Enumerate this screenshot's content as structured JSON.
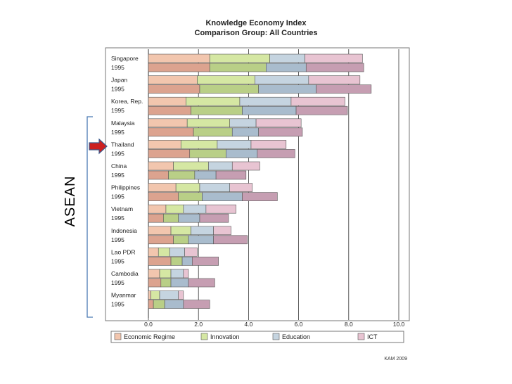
{
  "chart_data": {
    "type": "bar",
    "orientation": "horizontal",
    "stacked": true,
    "title": "Knowledge Economy Index",
    "subtitle": "Comparison Group: All Countries",
    "xlim": [
      0,
      10
    ],
    "xticks": [
      "0.0",
      "2.0",
      "4.0",
      "6.0",
      "8.0",
      "10.0"
    ],
    "grid": "vertical",
    "legend_position": "bottom",
    "series": [
      {
        "name": "Economic Regime",
        "color": "#f2c6ae"
      },
      {
        "name": "Innovation",
        "color": "#d5e7a3"
      },
      {
        "name": "Education",
        "color": "#c5d4e0"
      },
      {
        "name": "ICT",
        "color": "#e8c4d2"
      }
    ],
    "colors_1995": [
      "#dca38f",
      "#b9cf87",
      "#a9bccd",
      "#c69eb2"
    ],
    "countries": [
      {
        "name": "Singapore",
        "year_label": "1995",
        "current": [
          2.45,
          2.4,
          1.4,
          2.3
        ],
        "y1995": [
          2.45,
          2.25,
          1.6,
          2.3
        ]
      },
      {
        "name": "Japan",
        "year_label": "1995",
        "current": [
          1.95,
          2.3,
          2.15,
          2.05
        ],
        "y1995": [
          2.05,
          2.35,
          2.3,
          2.2
        ]
      },
      {
        "name": "Korea, Rep.",
        "year_label": "1995",
        "current": [
          1.5,
          2.15,
          2.05,
          2.15
        ],
        "y1995": [
          1.7,
          2.05,
          2.15,
          2.05
        ]
      },
      {
        "name": "Malaysia",
        "year_label": "1995",
        "current": [
          1.55,
          1.7,
          1.05,
          1.8
        ],
        "y1995": [
          1.8,
          1.55,
          1.05,
          1.75
        ]
      },
      {
        "name": "Thailand",
        "year_label": "1995",
        "current": [
          1.3,
          1.45,
          1.35,
          1.4
        ],
        "y1995": [
          1.65,
          1.45,
          1.25,
          1.5
        ]
      },
      {
        "name": "China",
        "year_label": "1995",
        "current": [
          1.0,
          1.4,
          0.95,
          1.1
        ],
        "y1995": [
          0.8,
          1.05,
          0.85,
          1.2
        ]
      },
      {
        "name": "Philippines",
        "year_label": "1995",
        "current": [
          1.1,
          0.95,
          1.2,
          0.9
        ],
        "y1995": [
          1.2,
          0.95,
          1.6,
          1.4
        ]
      },
      {
        "name": "Vietnam",
        "year_label": "1995",
        "current": [
          0.7,
          0.7,
          0.9,
          1.2
        ],
        "y1995": [
          0.6,
          0.6,
          0.85,
          1.15
        ]
      },
      {
        "name": "Indonesia",
        "year_label": "1995",
        "current": [
          0.9,
          0.8,
          0.9,
          0.7
        ],
        "y1995": [
          1.0,
          0.6,
          1.0,
          1.35
        ]
      },
      {
        "name": "Lao PDR",
        "year_label": "1995",
        "current": [
          0.4,
          0.45,
          0.6,
          0.5
        ],
        "y1995": [
          0.9,
          0.45,
          0.4,
          1.05
        ]
      },
      {
        "name": "Cambodia",
        "year_label": "1995",
        "current": [
          0.45,
          0.45,
          0.5,
          0.2
        ],
        "y1995": [
          0.5,
          0.4,
          0.7,
          1.05
        ]
      },
      {
        "name": "Myanmar",
        "year_label": "1995",
        "current": [
          0.1,
          0.35,
          0.75,
          0.2
        ],
        "y1995": [
          0.2,
          0.45,
          0.75,
          1.05
        ]
      }
    ],
    "annotations": {
      "bracket_label": "ASEAN",
      "arrow_target": "Thailand",
      "arrow_color": "#cc1f1f"
    },
    "credit": "KAM 2009"
  }
}
